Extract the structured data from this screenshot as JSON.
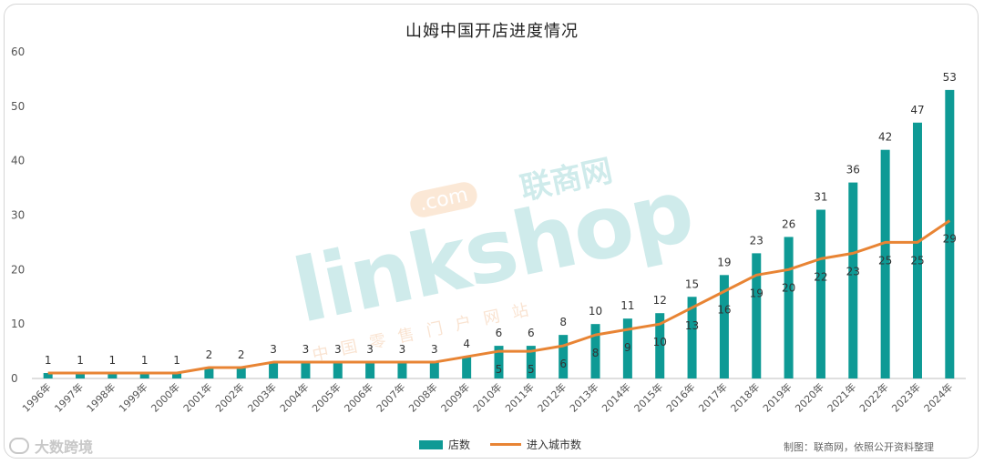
{
  "title": "山姆中国开店进度情况",
  "legend": {
    "bar": "店数",
    "line": "进入城市数"
  },
  "source": "制图：联商网，依照公开资料整理",
  "brand_watermark": "大数跨境",
  "watermark": {
    "main": "linkshop",
    "com": ".com",
    "cn": "联商网",
    "sub": "中国零售门户网站"
  },
  "colors": {
    "bar": "#0e9a95",
    "line": "#e88434"
  },
  "chart_data": {
    "type": "bar",
    "title": "山姆中国开店进度情况",
    "categories": [
      "1996年",
      "1997年",
      "1998年",
      "1999年",
      "2000年",
      "2001年",
      "2002年",
      "2003年",
      "2004年",
      "2005年",
      "2006年",
      "2007年",
      "2008年",
      "2009年",
      "2010年",
      "2011年",
      "2012年",
      "2013年",
      "2014年",
      "2015年",
      "2016年",
      "2017年",
      "2018年",
      "2019年",
      "2020年",
      "2021年",
      "2022年",
      "2023年",
      "2024年"
    ],
    "series": [
      {
        "name": "店数",
        "type": "bar",
        "values": [
          1,
          1,
          1,
          1,
          1,
          2,
          2,
          3,
          3,
          3,
          3,
          3,
          3,
          4,
          6,
          6,
          8,
          10,
          11,
          12,
          15,
          19,
          23,
          26,
          31,
          36,
          42,
          47,
          53
        ]
      },
      {
        "name": "进入城市数",
        "type": "line",
        "values": [
          1,
          1,
          1,
          1,
          1,
          2,
          2,
          3,
          3,
          3,
          3,
          3,
          3,
          4,
          5,
          5,
          6,
          8,
          9,
          10,
          13,
          16,
          19,
          20,
          22,
          23,
          25,
          25,
          29
        ]
      }
    ],
    "ylim": [
      0,
      60
    ],
    "yticks": [
      0,
      10,
      20,
      30,
      40,
      50,
      60
    ],
    "grid": false,
    "legend_position": "bottom"
  }
}
